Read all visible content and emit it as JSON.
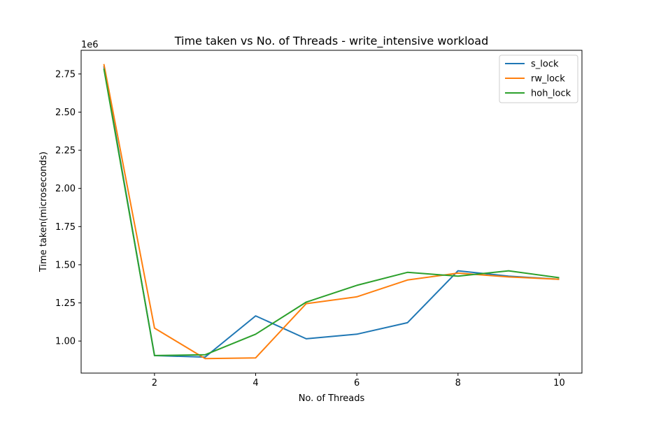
{
  "chart_data": {
    "type": "line",
    "title": "Time taken vs No. of Threads - write_intensive workload",
    "xlabel": "No. of Threads",
    "ylabel": "Time taken(microseconds)",
    "y_offset_label": "1e6",
    "xlim": [
      0.55,
      10.45
    ],
    "ylim": [
      0.79,
      2.905
    ],
    "xticks": [
      2,
      4,
      6,
      8,
      10
    ],
    "xtick_labels": [
      "2",
      "4",
      "6",
      "8",
      "10"
    ],
    "yticks": [
      1.0,
      1.25,
      1.5,
      1.75,
      2.0,
      2.25,
      2.5,
      2.75
    ],
    "ytick_labels": [
      "1.00",
      "1.25",
      "1.50",
      "1.75",
      "2.00",
      "2.25",
      "2.50",
      "2.75"
    ],
    "grid": false,
    "legend_position": "top-right",
    "x": [
      1,
      2,
      3,
      4,
      5,
      6,
      7,
      8,
      9,
      10
    ],
    "series": [
      {
        "name": "s_lock",
        "color": "#1f77b4",
        "values": [
          2.8,
          0.905,
          0.895,
          1.165,
          1.015,
          1.045,
          1.12,
          1.46,
          1.425,
          1.405
        ]
      },
      {
        "name": "rw_lock",
        "color": "#ff7f0e",
        "values": [
          2.815,
          1.085,
          0.885,
          0.89,
          1.245,
          1.29,
          1.4,
          1.445,
          1.42,
          1.405
        ]
      },
      {
        "name": "hoh_lock",
        "color": "#2ca02c",
        "values": [
          2.785,
          0.905,
          0.91,
          1.045,
          1.255,
          1.365,
          1.45,
          1.425,
          1.46,
          1.415
        ]
      }
    ]
  }
}
